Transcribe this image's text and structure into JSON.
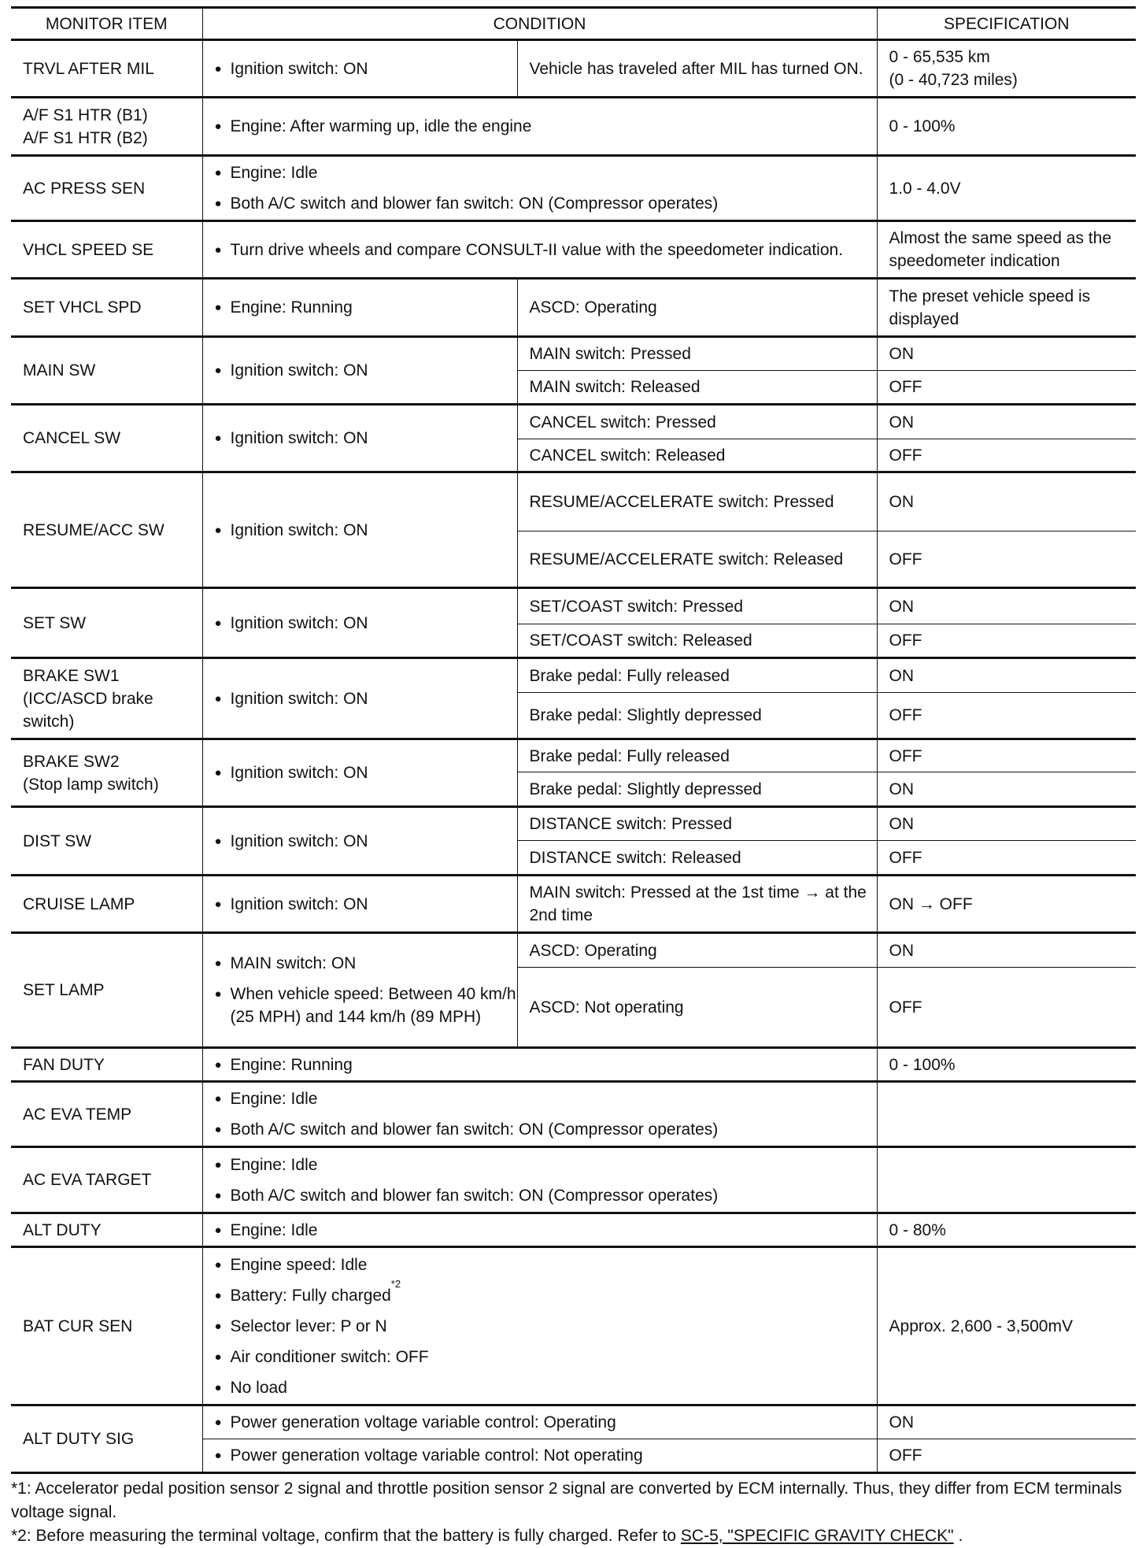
{
  "headers": {
    "item": "MONITOR ITEM",
    "condition": "CONDITION",
    "spec": "SPECIFICATION"
  },
  "items": [
    {
      "label": "TRVL AFTER MIL",
      "bullets": [
        "Ignition switch: ON"
      ],
      "subs": [
        {
          "cond": "Vehicle has traveled after MIL has turned ON.",
          "spec": "0 - 65,535 km\n(0 - 40,723 miles)"
        }
      ]
    },
    {
      "label": "A/F S1 HTR (B1)\nA/F S1 HTR (B2)",
      "bullets": [
        "Engine: After warming up, idle the engine"
      ],
      "spec": "0 - 100%"
    },
    {
      "label": "AC PRESS SEN",
      "bullets": [
        "Engine: Idle",
        "Both A/C switch and blower fan switch: ON (Compressor operates)"
      ],
      "spec": "1.0 - 4.0V"
    },
    {
      "label": "VHCL SPEED SE",
      "bullets": [
        "Turn drive wheels and compare CONSULT-II value with the speedometer indication."
      ],
      "spec": "Almost the same speed as the speedometer indication"
    },
    {
      "label": "SET VHCL SPD",
      "bullets": [
        "Engine: Running"
      ],
      "subs": [
        {
          "cond": "ASCD: Operating",
          "spec": "The preset vehicle speed is displayed"
        }
      ]
    },
    {
      "label": "MAIN SW",
      "bullets": [
        "Ignition switch: ON"
      ],
      "subs": [
        {
          "cond": "MAIN switch: Pressed",
          "spec": "ON"
        },
        {
          "cond": "MAIN switch: Released",
          "spec": "OFF"
        }
      ]
    },
    {
      "label": "CANCEL SW",
      "bullets": [
        "Ignition switch: ON"
      ],
      "subs": [
        {
          "cond": "CANCEL switch: Pressed",
          "spec": "ON"
        },
        {
          "cond": "CANCEL switch: Released",
          "spec": "OFF"
        }
      ]
    },
    {
      "label": "RESUME/ACC SW",
      "bullets": [
        "Ignition switch: ON"
      ],
      "subs": [
        {
          "cond": "RESUME/ACCELERATE switch: Pressed",
          "spec": "ON"
        },
        {
          "cond": "RESUME/ACCELERATE switch: Released",
          "spec": "OFF"
        }
      ]
    },
    {
      "label": "SET SW",
      "bullets": [
        "Ignition switch: ON"
      ],
      "subs": [
        {
          "cond": "SET/COAST switch: Pressed",
          "spec": "ON"
        },
        {
          "cond": "SET/COAST switch: Released",
          "spec": "OFF"
        }
      ]
    },
    {
      "label": "BRAKE SW1\n(ICC/ASCD brake switch)",
      "bullets": [
        "Ignition switch: ON"
      ],
      "subs": [
        {
          "cond": "Brake pedal: Fully released",
          "spec": "ON"
        },
        {
          "cond": "Brake pedal: Slightly depressed",
          "spec": "OFF"
        }
      ]
    },
    {
      "label": "BRAKE SW2\n(Stop lamp switch)",
      "bullets": [
        "Ignition switch: ON"
      ],
      "subs": [
        {
          "cond": "Brake pedal: Fully released",
          "spec": "OFF"
        },
        {
          "cond": "Brake pedal: Slightly depressed",
          "spec": "ON"
        }
      ]
    },
    {
      "label": "DIST SW",
      "bullets": [
        "Ignition switch: ON"
      ],
      "subs": [
        {
          "cond": "DISTANCE switch: Pressed",
          "spec": "ON"
        },
        {
          "cond": "DISTANCE switch: Released",
          "spec": "OFF"
        }
      ]
    },
    {
      "label": "CRUISE LAMP",
      "bullets": [
        "Ignition switch: ON"
      ],
      "subs": [
        {
          "cond": "MAIN switch: Pressed at the 1st time → at the 2nd time",
          "spec": "ON → OFF"
        }
      ]
    },
    {
      "label": "SET LAMP",
      "bullets": [
        "MAIN switch: ON",
        "When vehicle speed: Between 40 km/h (25 MPH) and 144 km/h (89 MPH)"
      ],
      "subs": [
        {
          "cond": "ASCD: Operating",
          "spec": "ON"
        },
        {
          "cond": "ASCD: Not operating",
          "spec": "OFF"
        }
      ]
    },
    {
      "label": "FAN DUTY",
      "bullets": [
        "Engine: Running"
      ],
      "spec": "0 - 100%"
    },
    {
      "label": "AC EVA TEMP",
      "bullets": [
        "Engine: Idle",
        "Both A/C switch and blower fan switch: ON (Compressor operates)"
      ],
      "spec": ""
    },
    {
      "label": "AC EVA TARGET",
      "bullets": [
        "Engine: Idle",
        "Both A/C switch and blower fan switch: ON (Compressor operates)"
      ],
      "spec": ""
    },
    {
      "label": "ALT DUTY",
      "bullets": [
        "Engine: Idle"
      ],
      "spec": "0 - 80%"
    },
    {
      "label": "BAT CUR SEN",
      "bullets": [
        "Engine speed: Idle",
        "Battery: Fully charged",
        "Selector lever: P or N",
        "Air conditioner switch: OFF",
        "No load"
      ],
      "sup": {
        "index": 1,
        "text": "*2"
      },
      "spec": "Approx. 2,600 - 3,500mV"
    },
    {
      "label": "ALT DUTY SIG",
      "wide_subs": [
        {
          "bullet": "Power generation voltage variable control: Operating",
          "spec": "ON"
        },
        {
          "bullet": "Power generation voltage variable control: Not operating",
          "spec": "OFF"
        }
      ]
    }
  ],
  "notes": {
    "note1": "*1: Accelerator pedal position sensor 2 signal and throttle position sensor 2 signal are converted by ECM internally. Thus, they differ from ECM terminals voltage signal.",
    "note2_text": "*2: Before measuring the terminal voltage, confirm that the battery is fully charged. Refer to ",
    "note2_link": "SC-5, \"SPECIFIC GRAVITY CHECK\"",
    "note2_end": " ."
  }
}
